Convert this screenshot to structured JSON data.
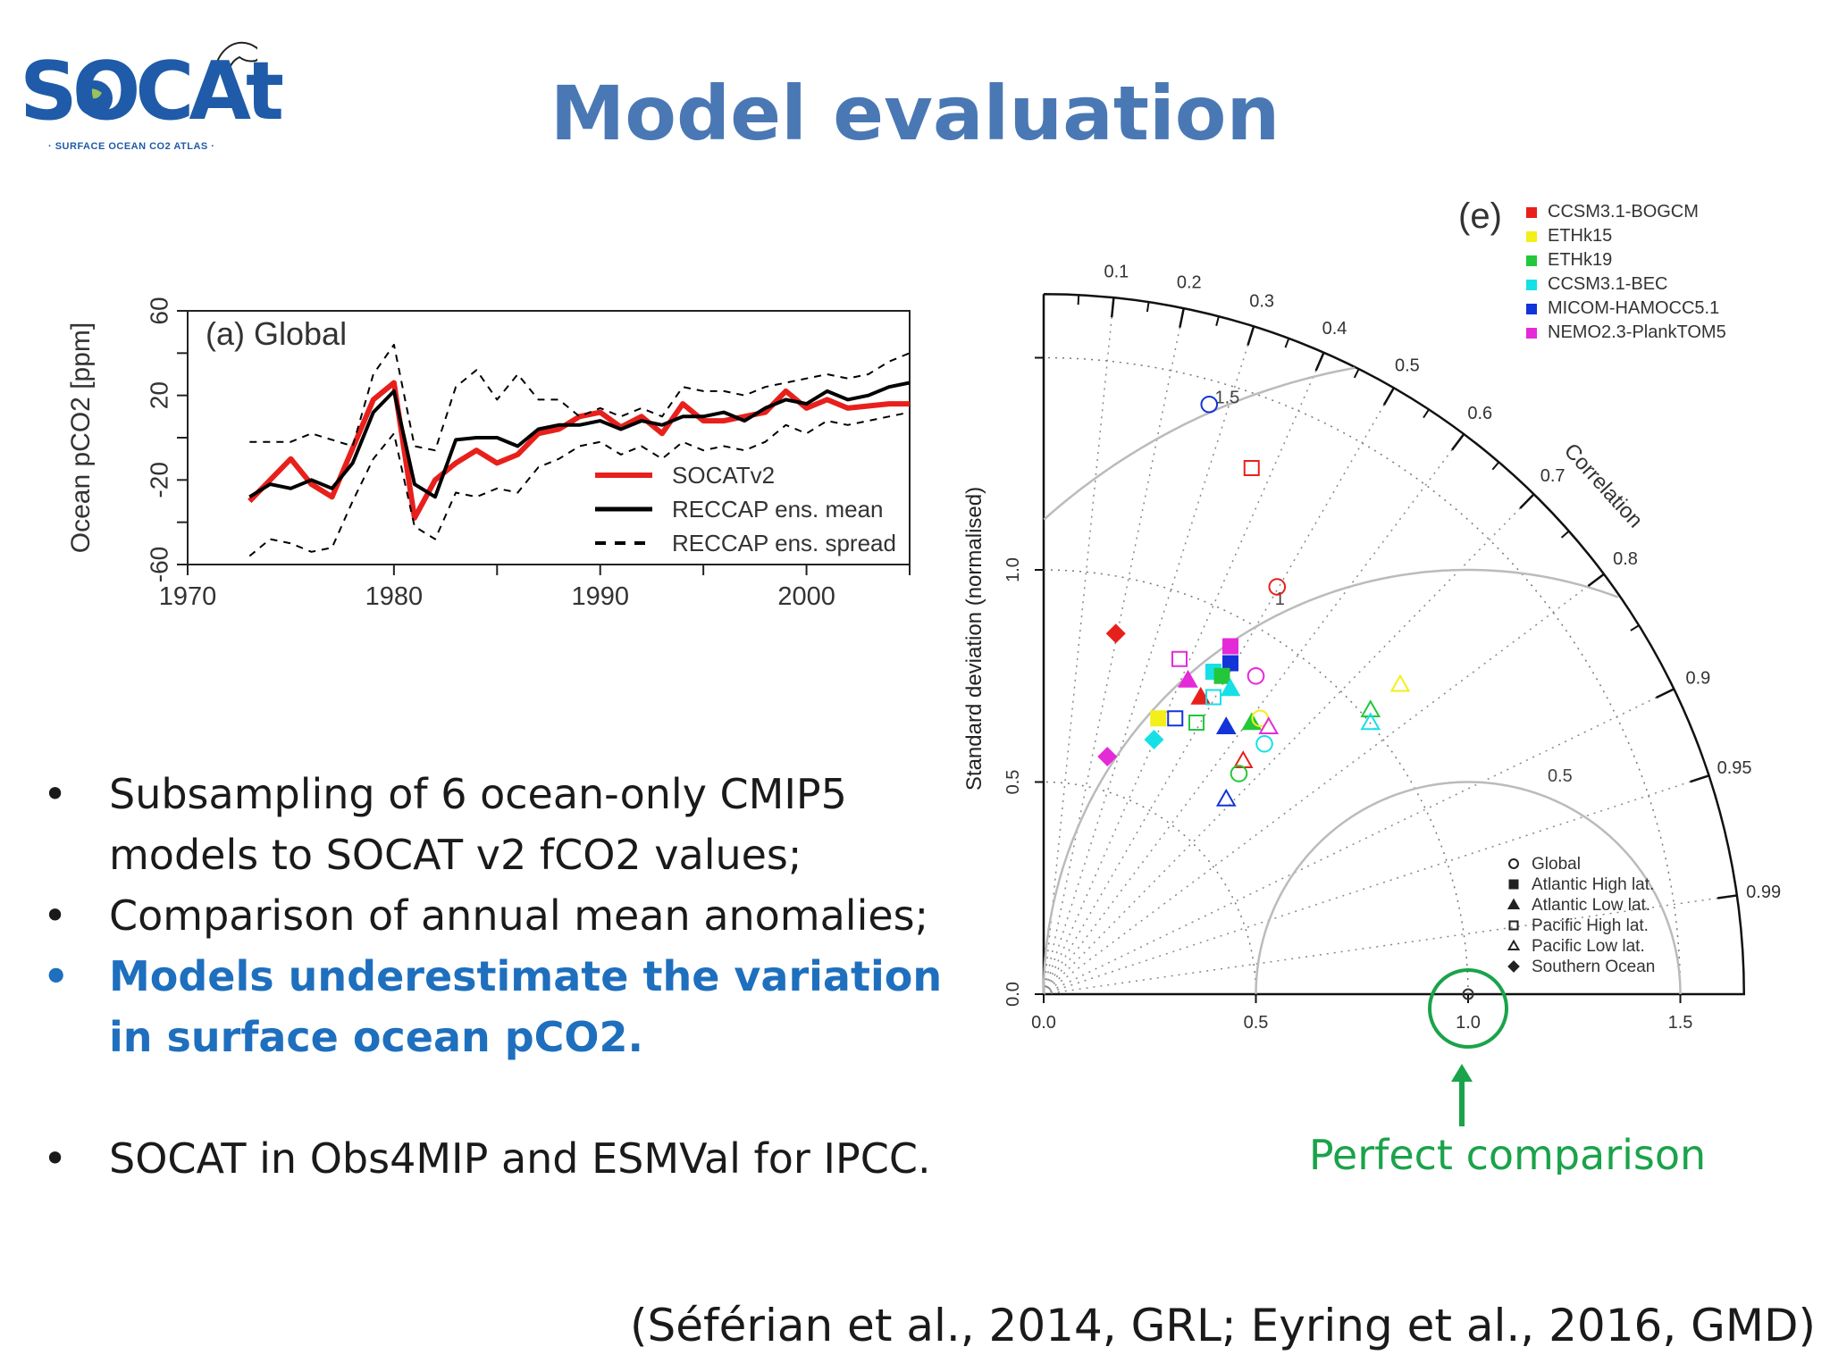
{
  "logo": {
    "text": "SOCAt",
    "subtitle": "· SURFACE OCEAN CO2 ATLAS ·"
  },
  "title": "Model evaluation",
  "bullets": [
    {
      "text": "Subsampling of 6 ocean-only CMIP5 models to SOCAT v2 fCO2 values;",
      "highlight": false
    },
    {
      "text": "Comparison of annual mean anomalies;",
      "highlight": false
    },
    {
      "text": "Models underestimate the variation in surface ocean pCO2.",
      "highlight": true
    },
    {
      "text": "SOCAT in Obs4MIP and ESMVal for IPCC.",
      "highlight": false
    }
  ],
  "bullet_glyph": "•",
  "citation": "(Séférian et al., 2014, GRL; Eyring et al., 2016, GMD)",
  "perfect_label": "Perfect comparison",
  "colors": {
    "title": "#4a78b4",
    "highlight": "#1e6fbe",
    "perfect": "#1aa34a",
    "socat": "#e8201c",
    "reccap": "#000000"
  },
  "chart_data": [
    {
      "type": "line",
      "panel": "(a) Global",
      "ylabel": "Ocean pCO2 [ppm]",
      "xlabel": "",
      "xlim": [
        1970,
        2005
      ],
      "ylim": [
        -60,
        60
      ],
      "xticks": [
        1970,
        1980,
        1990,
        2000
      ],
      "yticks": [
        -60,
        -20,
        20,
        60
      ],
      "legend_position": "bottom-right",
      "series": [
        {
          "name": "SOCATv2",
          "style": "red-solid",
          "points": [
            [
              1973,
              -30
            ],
            [
              1975,
              -10
            ],
            [
              1976,
              -22
            ],
            [
              1977,
              -28
            ],
            [
              1978,
              -5
            ],
            [
              1979,
              18
            ],
            [
              1980,
              26
            ],
            [
              1981,
              -38
            ],
            [
              1982,
              -20
            ],
            [
              1983,
              -12
            ],
            [
              1984,
              -6
            ],
            [
              1985,
              -12
            ],
            [
              1986,
              -8
            ],
            [
              1987,
              2
            ],
            [
              1988,
              4
            ],
            [
              1989,
              10
            ],
            [
              1990,
              12
            ],
            [
              1991,
              5
            ],
            [
              1992,
              10
            ],
            [
              1993,
              2
            ],
            [
              1994,
              16
            ],
            [
              1995,
              8
            ],
            [
              1996,
              8
            ],
            [
              1997,
              10
            ],
            [
              1998,
              12
            ],
            [
              1999,
              22
            ],
            [
              2000,
              14
            ],
            [
              2001,
              18
            ],
            [
              2002,
              14
            ],
            [
              2003,
              15
            ],
            [
              2004,
              16
            ],
            [
              2005,
              16
            ]
          ]
        },
        {
          "name": "RECCAP ens. mean",
          "style": "black-solid",
          "points": [
            [
              1973,
              -28
            ],
            [
              1974,
              -22
            ],
            [
              1975,
              -24
            ],
            [
              1976,
              -20
            ],
            [
              1977,
              -24
            ],
            [
              1978,
              -12
            ],
            [
              1979,
              12
            ],
            [
              1980,
              22
            ],
            [
              1981,
              -22
            ],
            [
              1982,
              -28
            ],
            [
              1983,
              -1
            ],
            [
              1984,
              0
            ],
            [
              1985,
              0
            ],
            [
              1986,
              -4
            ],
            [
              1987,
              4
            ],
            [
              1988,
              6
            ],
            [
              1989,
              6
            ],
            [
              1990,
              8
            ],
            [
              1991,
              4
            ],
            [
              1992,
              8
            ],
            [
              1993,
              6
            ],
            [
              1994,
              10
            ],
            [
              1995,
              10
            ],
            [
              1996,
              12
            ],
            [
              1997,
              8
            ],
            [
              1998,
              14
            ],
            [
              1999,
              18
            ],
            [
              2000,
              16
            ],
            [
              2001,
              22
            ],
            [
              2002,
              18
            ],
            [
              2003,
              20
            ],
            [
              2004,
              24
            ],
            [
              2005,
              26
            ]
          ]
        },
        {
          "name": "RECCAP ens. spread",
          "style": "black-dashed",
          "points": [
            [
              1973,
              -2
            ],
            [
              1975,
              -2
            ],
            [
              1976,
              2
            ],
            [
              1978,
              -4
            ],
            [
              1979,
              30
            ],
            [
              1980,
              44
            ],
            [
              1981,
              -4
            ],
            [
              1982,
              -6
            ],
            [
              1983,
              24
            ],
            [
              1984,
              32
            ],
            [
              1985,
              18
            ],
            [
              1986,
              30
            ],
            [
              1987,
              18
            ],
            [
              1988,
              18
            ],
            [
              1989,
              10
            ],
            [
              1990,
              14
            ],
            [
              1991,
              10
            ],
            [
              1992,
              14
            ],
            [
              1993,
              10
            ],
            [
              1994,
              24
            ],
            [
              1995,
              22
            ],
            [
              1996,
              22
            ],
            [
              1997,
              20
            ],
            [
              1998,
              24
            ],
            [
              1999,
              26
            ],
            [
              2000,
              28
            ],
            [
              2001,
              30
            ],
            [
              2002,
              28
            ],
            [
              2003,
              30
            ],
            [
              2004,
              36
            ],
            [
              2005,
              40
            ]
          ]
        },
        {
          "name": "",
          "style": "black-dashed",
          "points": [
            [
              1973,
              -56
            ],
            [
              1974,
              -48
            ],
            [
              1975,
              -50
            ],
            [
              1976,
              -54
            ],
            [
              1977,
              -52
            ],
            [
              1978,
              -30
            ],
            [
              1979,
              -10
            ],
            [
              1980,
              2
            ],
            [
              1981,
              -42
            ],
            [
              1982,
              -48
            ],
            [
              1983,
              -26
            ],
            [
              1984,
              -28
            ],
            [
              1985,
              -24
            ],
            [
              1986,
              -26
            ],
            [
              1987,
              -14
            ],
            [
              1988,
              -10
            ],
            [
              1989,
              -4
            ],
            [
              1990,
              -2
            ],
            [
              1991,
              -8
            ],
            [
              1992,
              -4
            ],
            [
              1993,
              -10
            ],
            [
              1994,
              -2
            ],
            [
              1995,
              -6
            ],
            [
              1996,
              -4
            ],
            [
              1997,
              -6
            ],
            [
              1998,
              -2
            ],
            [
              1999,
              6
            ],
            [
              2000,
              2
            ],
            [
              2001,
              8
            ],
            [
              2002,
              6
            ],
            [
              2003,
              8
            ],
            [
              2004,
              10
            ],
            [
              2005,
              12
            ]
          ]
        }
      ]
    },
    {
      "type": "scatter",
      "subtype": "taylor-diagram",
      "panel": "(e)",
      "ylabel": "Standard deviation (normalised)",
      "arc_label": "Correlation",
      "xlim": [
        0,
        1.65
      ],
      "xticks": [
        0.0,
        0.5,
        1.0,
        1.5
      ],
      "yticks": [
        0.0,
        0.5,
        1.0
      ],
      "correlation_ticks": [
        0.1,
        0.2,
        0.3,
        0.4,
        0.5,
        0.6,
        0.7,
        0.8,
        0.9,
        0.95,
        0.99
      ],
      "rms_contours": [
        0.5,
        1,
        1.5
      ],
      "reference": {
        "std": 1.0,
        "corr": 1.0
      },
      "models": [
        {
          "name": "CCSM3.1-BOGCM",
          "color": "#e8201c"
        },
        {
          "name": "ETHk15",
          "color": "#f2ef1a"
        },
        {
          "name": "ETHk19",
          "color": "#22c83a"
        },
        {
          "name": "CCSM3.1-BEC",
          "color": "#16e0e6"
        },
        {
          "name": "MICOM-HAMOCC5.1",
          "color": "#1234d8"
        },
        {
          "name": "NEMO2.3-PlankTOM5",
          "color": "#e52ad8"
        }
      ],
      "regions": [
        {
          "name": "Global",
          "marker": "circle-open"
        },
        {
          "name": "Atlantic High lat.",
          "marker": "square-filled"
        },
        {
          "name": "Atlantic Low lat.",
          "marker": "triangle-filled"
        },
        {
          "name": "Pacific High lat.",
          "marker": "square-open"
        },
        {
          "name": "Pacific Low lat.",
          "marker": "triangle-open"
        },
        {
          "name": "Southern Ocean",
          "marker": "diamond-filled"
        }
      ],
      "points": [
        {
          "model": 4,
          "region": 0,
          "x": 0.39,
          "y": 1.39
        },
        {
          "model": 0,
          "region": 3,
          "x": 0.49,
          "y": 1.24
        },
        {
          "model": 0,
          "region": 0,
          "x": 0.55,
          "y": 0.96
        },
        {
          "model": 0,
          "region": 5,
          "x": 0.17,
          "y": 0.85
        },
        {
          "model": 5,
          "region": 1,
          "x": 0.44,
          "y": 0.82
        },
        {
          "model": 4,
          "region": 1,
          "x": 0.44,
          "y": 0.78
        },
        {
          "model": 5,
          "region": 3,
          "x": 0.32,
          "y": 0.79
        },
        {
          "model": 3,
          "region": 1,
          "x": 0.4,
          "y": 0.76
        },
        {
          "model": 2,
          "region": 1,
          "x": 0.42,
          "y": 0.75
        },
        {
          "model": 5,
          "region": 0,
          "x": 0.5,
          "y": 0.75
        },
        {
          "model": 5,
          "region": 2,
          "x": 0.34,
          "y": 0.74
        },
        {
          "model": 3,
          "region": 2,
          "x": 0.44,
          "y": 0.72
        },
        {
          "model": 0,
          "region": 2,
          "x": 0.37,
          "y": 0.7
        },
        {
          "model": 3,
          "region": 3,
          "x": 0.4,
          "y": 0.7
        },
        {
          "model": 1,
          "region": 4,
          "x": 0.84,
          "y": 0.73
        },
        {
          "model": 2,
          "region": 4,
          "x": 0.77,
          "y": 0.67
        },
        {
          "model": 3,
          "region": 4,
          "x": 0.77,
          "y": 0.64
        },
        {
          "model": 1,
          "region": 1,
          "x": 0.27,
          "y": 0.65
        },
        {
          "model": 4,
          "region": 3,
          "x": 0.31,
          "y": 0.65
        },
        {
          "model": 2,
          "region": 3,
          "x": 0.36,
          "y": 0.64
        },
        {
          "model": 4,
          "region": 2,
          "x": 0.43,
          "y": 0.63
        },
        {
          "model": 2,
          "region": 2,
          "x": 0.49,
          "y": 0.64
        },
        {
          "model": 1,
          "region": 0,
          "x": 0.51,
          "y": 0.65
        },
        {
          "model": 5,
          "region": 4,
          "x": 0.53,
          "y": 0.63
        },
        {
          "model": 3,
          "region": 0,
          "x": 0.52,
          "y": 0.59
        },
        {
          "model": 3,
          "region": 5,
          "x": 0.26,
          "y": 0.6
        },
        {
          "model": 0,
          "region": 4,
          "x": 0.47,
          "y": 0.55
        },
        {
          "model": 2,
          "region": 0,
          "x": 0.46,
          "y": 0.52
        },
        {
          "model": 4,
          "region": 4,
          "x": 0.43,
          "y": 0.46
        },
        {
          "model": 5,
          "region": 5,
          "x": 0.15,
          "y": 0.56
        }
      ]
    }
  ]
}
